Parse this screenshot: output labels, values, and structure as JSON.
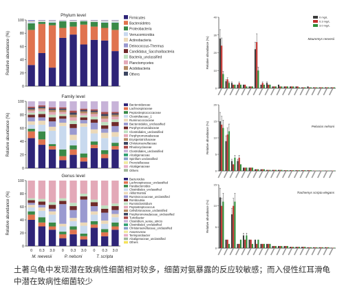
{
  "caption": "土著乌龟中发现潜在致病性细菌相对较多，细菌对氨暴露的反应较敏感；而入侵性红耳滑龟中潜在致病性细菌较少",
  "colors": {
    "bar_palette": [
      "#2e2477",
      "#e0734f",
      "#3a8a48",
      "#c8d9ee",
      "#ecd9b8",
      "#9a9ad0",
      "#6f2a2a",
      "#bfe0c0",
      "#e3a9b8",
      "#b48a63",
      "#3c4560",
      "#aa4a4a",
      "#c7b3d8",
      "#2f9f6f",
      "#8aa0c8",
      "#efe9a0",
      "#e7b0c6",
      "#a0b79a",
      "#f5e25a"
    ],
    "legend_dark": "#3c3c3c",
    "legend_red": "#c0302c",
    "legend_green": "#2f8f3a"
  },
  "chart_data": [
    {
      "type": "bar",
      "stacked": true,
      "title": "Phylum level",
      "ylabel": "Relative abundance (%)",
      "ylim": [
        0,
        100
      ],
      "yticks": [
        0,
        20,
        40,
        60,
        80,
        100
      ],
      "categories": [
        "0",
        "0.3",
        "3.0",
        "0",
        "0.3",
        "3.0",
        "0",
        "0.3",
        "3.0"
      ],
      "groups": [
        "M. reevesii",
        "P. nelsoni",
        "T. scripta"
      ],
      "legend": [
        "Firmicutes",
        "Bacteroidetes",
        "Proteobacteria",
        "Verrucomicrobia",
        "Actinobacteria",
        "Deinococcus-Thermus",
        "Candidatus_Saccharibacteria",
        "Bacteria_unclassified",
        "Planctomycetes",
        "Acidobacteria",
        "Others"
      ],
      "series": [
        {
          "name": "Firmicutes",
          "values": [
            32,
            50,
            28,
            73,
            78,
            63,
            70,
            69,
            53
          ]
        },
        {
          "name": "Bacteroidetes",
          "values": [
            53,
            44,
            64,
            15,
            12,
            30,
            20,
            19,
            32
          ]
        },
        {
          "name": "Proteobacteria",
          "values": [
            10,
            3,
            4,
            10,
            7,
            5,
            7,
            8,
            11
          ]
        },
        {
          "name": "Verrucomicrobia",
          "values": [
            2,
            1,
            2,
            1,
            1,
            1,
            1,
            2,
            2
          ]
        },
        {
          "name": "Actinobacteria",
          "values": [
            1,
            1,
            1,
            0.5,
            1,
            0.5,
            1,
            1,
            1
          ]
        },
        {
          "name": "Others",
          "values": [
            2,
            1,
            1,
            0.5,
            1,
            0.5,
            1,
            1,
            1
          ]
        }
      ]
    },
    {
      "type": "bar",
      "stacked": true,
      "title": "Family level",
      "ylabel": "Relative abundance (%)",
      "ylim": [
        0,
        100
      ],
      "yticks": [
        0,
        20,
        40,
        60,
        80,
        100
      ],
      "categories": [
        "0",
        "0.3",
        "3.0",
        "0",
        "0.3",
        "3.0",
        "0",
        "0.3",
        "3.0"
      ],
      "groups": [
        "M. reevesii",
        "P. nelsoni",
        "T. scripta"
      ],
      "legend": [
        "Bacteroidaceae",
        "Lachnospiraceae",
        "Peptostreptococcaceae",
        "Clostridiaceae_1",
        "Ruminococcaceae",
        "Bacteroidales_unclassified",
        "Porphyromonadaceae",
        "Clostridiales_unclassified",
        "Porphyromonadaceae",
        "Erysipelotrichaceae",
        "Christensenellaceae",
        "Rhodocyclaceae",
        "Clostridiales_unclassified",
        "Alcaligenaceae",
        "Spirillum unclassified",
        "Prevotellaceae",
        "Alcaligenaceae",
        "Others"
      ],
      "series": [
        {
          "name": "Bacteroidaceae",
          "values": [
            45,
            35,
            28,
            12,
            20,
            10,
            30,
            15,
            28
          ]
        },
        {
          "name": "Lachnospiraceae",
          "values": [
            10,
            8,
            5,
            6,
            8,
            6,
            5,
            6,
            5
          ]
        },
        {
          "name": "Peptostreptococcaceae",
          "values": [
            4,
            12,
            3,
            10,
            6,
            6,
            5,
            6,
            5
          ]
        },
        {
          "name": "Clostridiaceae_1",
          "values": [
            6,
            10,
            20,
            35,
            8,
            40,
            12,
            18,
            9
          ]
        },
        {
          "name": "Ruminococcaceae",
          "values": [
            5,
            6,
            6,
            5,
            8,
            5,
            6,
            8,
            7
          ]
        },
        {
          "name": "Bacteroidales_unclassified",
          "values": [
            6,
            5,
            8,
            6,
            10,
            5,
            10,
            6,
            9
          ]
        },
        {
          "name": "Porphyromonadaceae",
          "values": [
            4,
            5,
            6,
            4,
            6,
            4,
            5,
            5,
            6
          ]
        },
        {
          "name": "Clostridiales_unclassified",
          "values": [
            3,
            4,
            4,
            3,
            5,
            3,
            4,
            5,
            4
          ]
        },
        {
          "name": "Erysipelotrichaceae",
          "values": [
            3,
            3,
            4,
            3,
            5,
            3,
            4,
            5,
            4
          ]
        },
        {
          "name": "Christensenellaceae",
          "values": [
            2,
            2,
            3,
            3,
            4,
            3,
            3,
            4,
            3
          ]
        },
        {
          "name": "Rhodocyclaceae",
          "values": [
            2,
            2,
            2,
            2,
            3,
            2,
            2,
            3,
            2
          ]
        },
        {
          "name": "Alcaligenaceae",
          "values": [
            2,
            2,
            2,
            2,
            3,
            2,
            2,
            3,
            2
          ]
        },
        {
          "name": "Others",
          "values": [
            8,
            6,
            9,
            9,
            14,
            11,
            12,
            16,
            16
          ]
        }
      ]
    },
    {
      "type": "bar",
      "stacked": true,
      "title": "Genus level",
      "ylabel": "Relative abundance (%)",
      "ylim": [
        0,
        100
      ],
      "yticks": [
        0,
        20,
        40,
        60,
        80,
        100
      ],
      "categories": [
        "0",
        "0.3",
        "3.0",
        "0",
        "0.3",
        "3.0",
        "0",
        "0.3",
        "3.0"
      ],
      "groups": [
        "M. reevesii",
        "P. nelsoni",
        "T. scripta"
      ],
      "xlabel_prefix": [
        "M. reevesii",
        "P. nelsoni",
        "T. scripta"
      ],
      "legend": [
        "Bacteroides",
        "Lachnospiraceae_unclassified",
        "Parabacteroides",
        "Clostridiales_unclassified",
        "Akkermansia",
        "Ruminococcaceae_unclassified",
        "Romboutsia",
        "Ruminiclostridium",
        "Peptostreptococcus",
        "Cellvibrionaceae_unclassified",
        "Porphyromonadaceae_unclassified",
        "Turicibacter",
        "Clostridium_sensu_stricto",
        "Clostridiales_unclassified",
        "Christensenellaceae_unclassified",
        "Anaerovorax",
        "Terrisporobacter",
        "Alcaligenaceae_unclassified",
        "Others"
      ],
      "series": [
        {
          "name": "Bacteroides",
          "values": [
            40,
            30,
            25,
            12,
            18,
            10,
            28,
            15,
            25
          ]
        },
        {
          "name": "Lachnospiraceae_unclassified",
          "values": [
            8,
            6,
            5,
            6,
            7,
            5,
            5,
            6,
            5
          ]
        },
        {
          "name": "Parabacteroides",
          "values": [
            5,
            8,
            6,
            4,
            5,
            4,
            5,
            5,
            6
          ]
        },
        {
          "name": "Clostridiales_unclassified",
          "values": [
            6,
            10,
            12,
            8,
            8,
            12,
            10,
            8,
            8
          ]
        },
        {
          "name": "Akkermansia",
          "values": [
            4,
            5,
            5,
            4,
            5,
            5,
            5,
            5,
            5
          ]
        },
        {
          "name": "Ruminococcaceae_unclassified",
          "values": [
            3,
            4,
            4,
            30,
            12,
            35,
            8,
            12,
            6
          ]
        },
        {
          "name": "Romboutsia",
          "values": [
            4,
            5,
            6,
            5,
            6,
            5,
            6,
            6,
            6
          ]
        },
        {
          "name": "Turicibacter",
          "values": [
            3,
            4,
            4,
            4,
            5,
            4,
            4,
            5,
            4
          ]
        },
        {
          "name": "Others",
          "values": [
            27,
            28,
            33,
            27,
            34,
            20,
            29,
            38,
            35
          ]
        }
      ]
    },
    {
      "type": "bar",
      "title": "",
      "annotation": "Mauremys reevesii",
      "ylabel": "Relative abundance (%)",
      "ylim": [
        0,
        40
      ],
      "yticks": [
        0,
        10,
        20,
        30,
        40
      ],
      "legend": [
        "0 mg/L",
        "0.3 mg/L",
        "3.0 mg/L"
      ],
      "categories": [
        "t1",
        "t2",
        "t3",
        "t4",
        "t5",
        "t6",
        "t7",
        "t8",
        "t9",
        "t10",
        "t11",
        "t12",
        "t13",
        "t14",
        "t15",
        "t16",
        "t17",
        "t18",
        "t19",
        "t20"
      ],
      "series": [
        {
          "name": "0 mg/L",
          "values": [
            28,
            4,
            3,
            2,
            2,
            1,
            22,
            2,
            3,
            1,
            2,
            1,
            1,
            1,
            0.5,
            1,
            0.5,
            0.5,
            0.5,
            0.5
          ]
        },
        {
          "name": "0.3 mg/L",
          "values": [
            24,
            5,
            2,
            3,
            2,
            1,
            26,
            3,
            2,
            1,
            1,
            1,
            1,
            1,
            0.5,
            0.5,
            0.5,
            0.5,
            0.5,
            0.5
          ]
        },
        {
          "name": "3.0 mg/L",
          "values": [
            8,
            3,
            2,
            2,
            1,
            1,
            10,
            2,
            2,
            1,
            1,
            1,
            1,
            0.5,
            0.5,
            0.5,
            0.5,
            0.5,
            0.5,
            0.5
          ]
        }
      ]
    },
    {
      "type": "bar",
      "title": "",
      "annotation": "Pelusios nelsoni",
      "ylabel": "Relative abundance (%)",
      "ylim": [
        0,
        20
      ],
      "yticks": [
        0,
        5,
        10,
        15,
        20
      ],
      "categories": [
        "t1",
        "t2",
        "t3",
        "t4",
        "t5",
        "t6",
        "t7",
        "t8",
        "t9",
        "t10",
        "t11",
        "t12",
        "t13",
        "t14",
        "t15",
        "t16",
        "t17",
        "t18",
        "t19",
        "t20"
      ],
      "series": [
        {
          "name": "0 mg/L",
          "values": [
            15,
            9,
            3,
            3,
            1,
            1,
            0.5,
            0.5,
            0.3,
            0.3,
            0.3,
            0.2,
            0.2,
            0.2,
            0.2,
            0.2,
            0.1,
            0.1,
            0.1,
            0.1
          ]
        },
        {
          "name": "0.3 mg/L",
          "values": [
            14,
            11,
            2,
            4,
            1,
            1,
            0.5,
            0.5,
            0.3,
            0.3,
            0.3,
            0.2,
            0.2,
            0.2,
            0.2,
            0.2,
            0.1,
            0.1,
            0.1,
            0.1
          ]
        },
        {
          "name": "3.0 mg/L",
          "values": [
            13,
            12,
            4,
            2,
            1,
            1,
            0.5,
            0.5,
            0.3,
            0.3,
            0.3,
            0.2,
            0.2,
            0.2,
            0.2,
            0.2,
            0.1,
            0.1,
            0.1,
            0.1
          ]
        }
      ]
    },
    {
      "type": "bar",
      "title": "",
      "annotation": "Trachemys scripta elegans",
      "ylabel": "Relative abundance (%)",
      "ylim": [
        0,
        15
      ],
      "yticks": [
        0,
        5,
        10,
        15
      ],
      "categories": [
        "t1",
        "t2",
        "t3",
        "t4",
        "t5",
        "t6",
        "t7",
        "t8",
        "t9",
        "t10",
        "t11",
        "t12",
        "t13",
        "t14",
        "t15",
        "t16",
        "t17",
        "t18",
        "t19",
        "t20"
      ],
      "series": [
        {
          "name": "0 mg/L",
          "values": [
            12,
            2,
            8,
            1,
            3,
            2,
            2,
            1,
            1,
            0.5,
            0.5,
            0.5,
            0.3,
            0.3,
            0.3,
            0.2,
            0.2,
            0.2,
            0.2,
            0.1
          ]
        },
        {
          "name": "0.3 mg/L",
          "values": [
            10,
            2,
            10,
            1,
            2,
            2,
            1,
            1,
            1,
            0.5,
            0.5,
            0.5,
            0.3,
            0.3,
            0.3,
            0.2,
            0.2,
            0.2,
            0.2,
            0.1
          ]
        },
        {
          "name": "3.0 mg/L",
          "values": [
            11,
            1,
            11,
            2,
            3,
            1,
            2,
            1,
            1,
            0.5,
            0.5,
            0.5,
            0.3,
            0.3,
            0.3,
            0.2,
            0.2,
            0.2,
            0.2,
            0.1
          ]
        }
      ]
    }
  ]
}
